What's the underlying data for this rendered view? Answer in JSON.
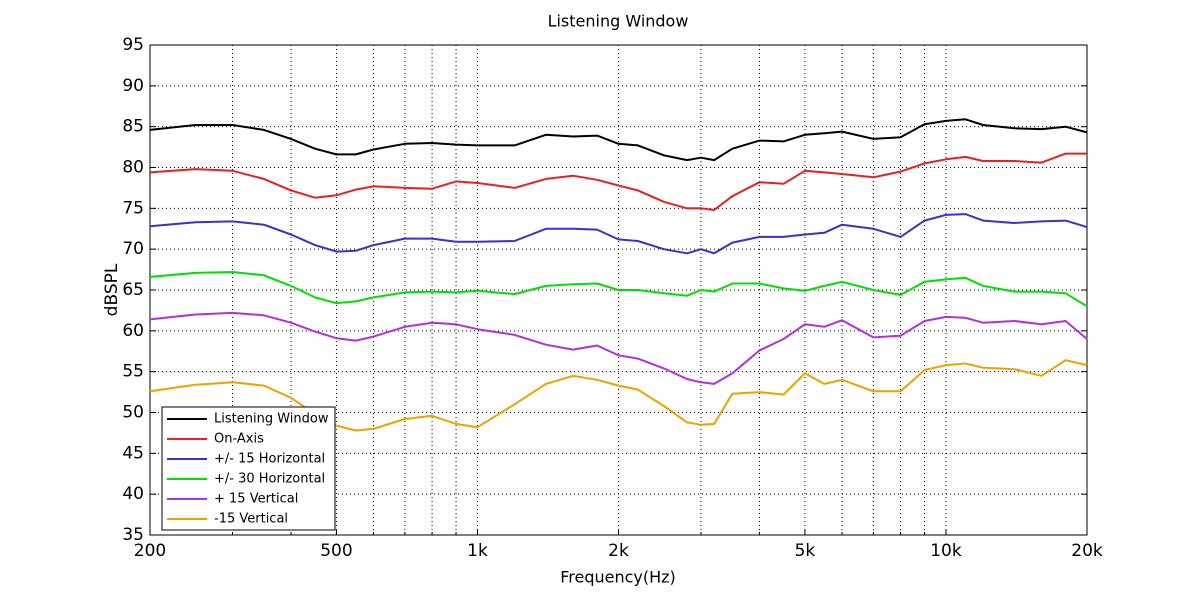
{
  "chart_data": {
    "type": "line",
    "title": "Listening Window",
    "xlabel": "Frequency(Hz)",
    "ylabel": "dBSPL",
    "xscale": "log",
    "grid": true,
    "legend": "lower left",
    "xlim": [
      200,
      20000
    ],
    "ylim": [
      35,
      95
    ],
    "xticks": [
      200,
      500,
      {
        "value": 1000,
        "label": "1k"
      },
      {
        "value": 2000,
        "label": "2k"
      },
      {
        "value": 5000,
        "label": "5k"
      },
      {
        "value": 10000,
        "label": "10k"
      },
      {
        "value": 20000,
        "label": "20k"
      }
    ],
    "xminorticks": [
      300,
      400,
      600,
      700,
      800,
      900,
      3000,
      4000,
      6000,
      7000,
      8000,
      9000
    ],
    "yticks": [
      35,
      40,
      45,
      50,
      55,
      60,
      65,
      70,
      75,
      80,
      85,
      90,
      95
    ],
    "x": [
      200,
      250,
      300,
      350,
      400,
      450,
      500,
      550,
      600,
      700,
      800,
      900,
      1000,
      1200,
      1400,
      1600,
      1800,
      2000,
      2200,
      2500,
      2800,
      3000,
      3200,
      3500,
      4000,
      4500,
      5000,
      5500,
      6000,
      7000,
      8000,
      9000,
      10000,
      11000,
      12000,
      14000,
      16000,
      18000,
      20000
    ],
    "series": [
      {
        "name": "Listening Window",
        "color": "#000000",
        "values": [
          84.6,
          85.2,
          85.2,
          84.6,
          83.5,
          82.3,
          81.6,
          81.6,
          82.2,
          82.9,
          83,
          82.8,
          82.7,
          82.7,
          84,
          83.8,
          83.9,
          82.9,
          82.7,
          81.5,
          80.9,
          81.2,
          80.9,
          82.3,
          83.3,
          83.2,
          84,
          84.2,
          84.4,
          83.5,
          83.7,
          85.3,
          85.7,
          85.9,
          85.2,
          84.8,
          84.7,
          85,
          84.3
        ]
      },
      {
        "name": "On-Axis",
        "color": "#e8201f",
        "values": [
          79.4,
          79.8,
          79.6,
          78.6,
          77.2,
          76.3,
          76.6,
          77.3,
          77.7,
          77.5,
          77.4,
          78.3,
          78.1,
          77.5,
          78.6,
          79,
          78.5,
          77.8,
          77.2,
          75.8,
          75,
          75,
          74.8,
          76.5,
          78.2,
          78,
          79.6,
          79.4,
          79.2,
          78.8,
          79.5,
          80.5,
          81,
          81.3,
          80.8,
          80.8,
          80.6,
          81.7,
          81.7
        ]
      },
      {
        "name": "+/- 15 Horizontal",
        "color": "#3a2fd0",
        "values": [
          72.8,
          73.3,
          73.4,
          73,
          71.8,
          70.5,
          69.7,
          69.8,
          70.5,
          71.3,
          71.3,
          70.9,
          70.9,
          71,
          72.5,
          72.5,
          72.4,
          71.2,
          71,
          70,
          69.5,
          70,
          69.5,
          70.8,
          71.5,
          71.5,
          71.8,
          72,
          73,
          72.5,
          71.5,
          73.5,
          74.2,
          74.3,
          73.5,
          73.2,
          73.4,
          73.5,
          72.7
        ]
      },
      {
        "name": "+/- 30 Horizontal",
        "color": "#00e000",
        "values": [
          66.6,
          67.1,
          67.2,
          66.8,
          65.5,
          64.1,
          63.4,
          63.6,
          64.1,
          64.7,
          64.8,
          64.7,
          64.9,
          64.5,
          65.5,
          65.7,
          65.8,
          65,
          65,
          64.6,
          64.3,
          65,
          64.8,
          65.8,
          65.8,
          65.2,
          64.9,
          65.5,
          66,
          65,
          64.4,
          66,
          66.3,
          66.5,
          65.5,
          64.8,
          64.8,
          64.6,
          63
        ]
      },
      {
        "name": "+ 15 Vertical",
        "color": "#b030e0",
        "values": [
          61.4,
          62,
          62.2,
          61.9,
          61,
          59.9,
          59.1,
          58.8,
          59.3,
          60.5,
          61,
          60.8,
          60.2,
          59.5,
          58.3,
          57.7,
          58.2,
          57,
          56.6,
          55.4,
          54.1,
          53.7,
          53.5,
          54.8,
          57.6,
          59,
          60.8,
          60.5,
          61.3,
          59.2,
          59.4,
          61.2,
          61.7,
          61.6,
          61,
          61.2,
          60.8,
          61.2,
          59
        ]
      },
      {
        "name": "-15 Vertical",
        "color": "#f0a000",
        "values": [
          52.6,
          53.4,
          53.7,
          53.3,
          51.8,
          49.8,
          48.4,
          47.8,
          48,
          49.2,
          49.6,
          48.6,
          48.2,
          51,
          53.5,
          54.5,
          54,
          53.3,
          52.8,
          50.8,
          48.8,
          48.5,
          48.6,
          52.3,
          52.5,
          52.2,
          54.8,
          53.5,
          54,
          52.6,
          52.6,
          55.2,
          55.8,
          56,
          55.5,
          55.3,
          54.5,
          56.4,
          55.8
        ]
      }
    ]
  }
}
